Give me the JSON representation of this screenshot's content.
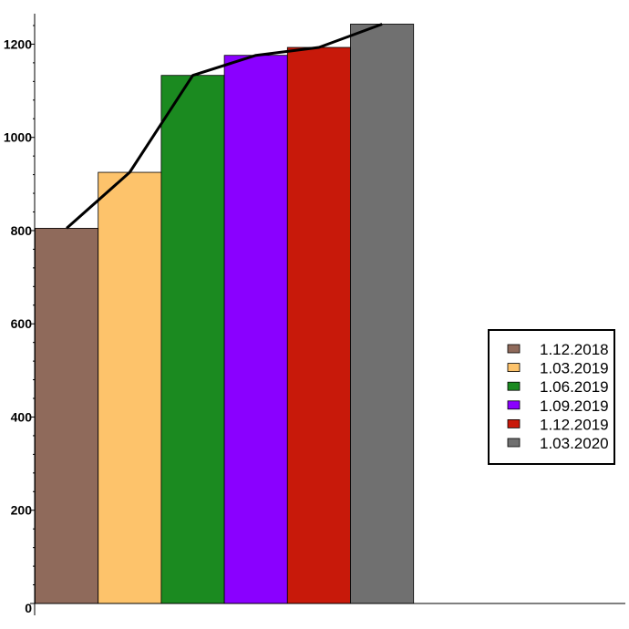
{
  "chart_data": {
    "type": "bar",
    "title": "",
    "xlabel": "",
    "ylabel": "",
    "categories": [
      "1.12.2018",
      "1.03.2019",
      "1.06.2019",
      "1.09.2019",
      "1.12.2019",
      "1.03.2020"
    ],
    "values": [
      805,
      925,
      1133,
      1176,
      1193,
      1243
    ],
    "colors": [
      "#8f6a5b",
      "#fdc36b",
      "#1b8a20",
      "#8a00ff",
      "#c8190a",
      "#707070"
    ],
    "overlay_line": {
      "type": "line",
      "values": [
        805,
        925,
        1133,
        1176,
        1193,
        1243
      ],
      "color": "#000000"
    },
    "ylim": [
      0,
      1270
    ],
    "yticks": [
      {
        "value": 0,
        "label": "0"
      },
      {
        "value": 200,
        "label": "200"
      },
      {
        "value": 400,
        "label": "400"
      },
      {
        "value": 600,
        "label": "600"
      },
      {
        "value": 800,
        "label": "800"
      },
      {
        "value": 1000,
        "label": "1000"
      },
      {
        "value": 1200,
        "label": "1200"
      }
    ],
    "minor_tick_step": 40,
    "grid": false,
    "legend_position": "right"
  }
}
